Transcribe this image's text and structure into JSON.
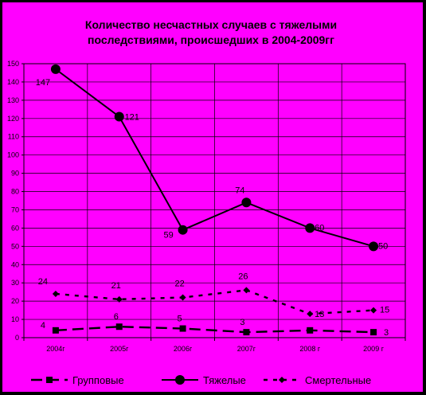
{
  "chart_data": {
    "type": "line",
    "title_lines": [
      "Количество несчастных случаев с тяжелыми",
      "последствиями, происшедших в 2004-2009гг"
    ],
    "categories": [
      "2004г",
      "2005г",
      "2006г",
      "2007г",
      "2008 г",
      "2009 г"
    ],
    "ylim": [
      0,
      150
    ],
    "yticks": [
      0,
      10,
      20,
      30,
      40,
      50,
      60,
      70,
      80,
      90,
      100,
      110,
      120,
      130,
      140,
      150
    ],
    "grid": true,
    "legend_position": "bottom",
    "series": [
      {
        "name": "Групповые",
        "values": [
          4,
          6,
          5,
          3,
          4,
          3
        ],
        "labels": [
          "4",
          "6",
          "5",
          "3",
          "",
          "3"
        ],
        "color": "#000000",
        "marker": "square",
        "line_style": "long-dash"
      },
      {
        "name": "Тяжелые",
        "values": [
          147,
          121,
          59,
          74,
          60,
          50
        ],
        "labels": [
          "147",
          "121",
          "59",
          "74",
          "60",
          "50"
        ],
        "color": "#000000",
        "marker": "circle",
        "line_style": "solid"
      },
      {
        "name": "Смертельные",
        "values": [
          24,
          21,
          22,
          26,
          13,
          15
        ],
        "labels": [
          "24",
          "21",
          "22",
          "26",
          "13",
          "15"
        ],
        "color": "#000000",
        "marker": "diamond",
        "line_style": "short-dash"
      }
    ]
  },
  "colors": {
    "chart_background": "#ff00ff",
    "outer_background": "#000000",
    "gridline": "#000000",
    "series": "#000000"
  }
}
